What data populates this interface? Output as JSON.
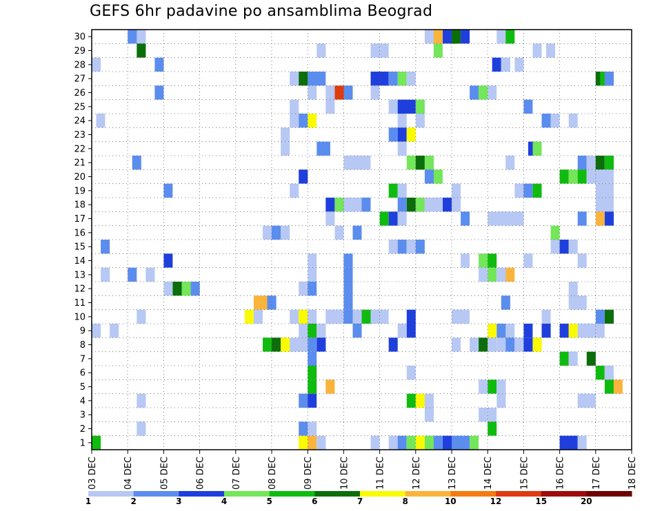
{
  "chart_data": {
    "type": "heatmap",
    "title": "GEFS 6hr padavine po ansamblima Beograd",
    "x_tick_labels": [
      "03 DEC",
      "04 DEC",
      "05 DEC",
      "06 DEC",
      "07 DEC",
      "08 DEC",
      "09 DEC",
      "10 DEC",
      "11 DEC",
      "12 DEC",
      "13 DEC",
      "14 DEC",
      "15 DEC",
      "16 DEC",
      "17 DEC",
      "18 DEC"
    ],
    "steps_per_day": 4,
    "x_steps": 60,
    "y_tick_labels": [
      "1",
      "2",
      "3",
      "4",
      "5",
      "6",
      "7",
      "8",
      "9",
      "10",
      "11",
      "12",
      "13",
      "14",
      "15",
      "16",
      "17",
      "18",
      "19",
      "20",
      "21",
      "22",
      "23",
      "24",
      "25",
      "26",
      "27",
      "28",
      "29",
      "30"
    ],
    "grid": true,
    "legend": {
      "position": "bottom",
      "colors": [
        "#b7c8f4",
        "#5b8def",
        "#1f3fdd",
        "#73e65a",
        "#10bb10",
        "#0b6e0b",
        "#fafa00",
        "#fab43c",
        "#f57a12",
        "#e03a10",
        "#a00a0a",
        "#6e0000"
      ],
      "labels": [
        "1",
        "2",
        "3",
        "4",
        "5",
        "6",
        "7",
        "8",
        "10",
        "12",
        "15",
        "20"
      ]
    },
    "cells": [
      [
        30,
        "24-24.75",
        2
      ],
      [
        30,
        "25",
        "1"
      ],
      [
        30,
        "57",
        "1"
      ],
      [
        30,
        "58",
        "8"
      ],
      [
        30,
        "59-59.5",
        3
      ],
      [
        30,
        "60",
        6
      ],
      [
        30,
        "61",
        "3"
      ],
      [
        30,
        "65-65.5",
        "1"
      ],
      [
        30,
        "66",
        "5"
      ],
      [
        29,
        "25",
        "6"
      ],
      [
        29,
        "45",
        "9"
      ],
      [
        29,
        "51-52",
        "1"
      ],
      [
        29,
        "58",
        "4"
      ],
      [
        29,
        "69",
        "11"
      ],
      [
        29,
        "70.5",
        "1"
      ],
      [
        28,
        "20",
        "1"
      ],
      [
        28,
        "27",
        "2"
      ],
      [
        28,
        "64.5",
        "3"
      ],
      [
        28,
        "65.5",
        "1"
      ],
      [
        28,
        "67",
        "1"
      ],
      [
        27,
        "42",
        "1"
      ],
      [
        27,
        "43",
        "6"
      ],
      [
        27,
        "44-45",
        "2"
      ],
      [
        27,
        "51-52",
        "3"
      ],
      [
        27,
        "53",
        "2"
      ],
      [
        27,
        "54",
        "4"
      ],
      [
        27,
        "55",
        "9"
      ],
      [
        27,
        "76",
        "6"
      ],
      [
        27,
        "76.5",
        "5"
      ],
      [
        27,
        "77",
        "2"
      ],
      [
        26,
        "27",
        "2"
      ],
      [
        26,
        "44",
        "1"
      ],
      [
        26,
        "46",
        "11"
      ],
      [
        26,
        "47",
        "12"
      ],
      [
        26,
        "48",
        "2"
      ],
      [
        26,
        "51",
        "1"
      ],
      [
        26,
        "62",
        "2"
      ],
      [
        26,
        "63",
        "4"
      ],
      [
        26,
        "64",
        "1"
      ],
      [
        25,
        "9.5",
        "2"
      ],
      [
        25,
        "42",
        "1"
      ],
      [
        25,
        "46",
        "1"
      ],
      [
        25,
        "53",
        "1"
      ],
      [
        25,
        "54-55",
        "3"
      ],
      [
        25,
        "56",
        "4"
      ],
      [
        25,
        "68",
        "2"
      ],
      [
        24,
        "20.5",
        "1"
      ],
      [
        24,
        "42",
        "1"
      ],
      [
        24,
        "43",
        "2"
      ],
      [
        24,
        "44",
        "7"
      ],
      [
        24,
        "54",
        "1"
      ],
      [
        24,
        "56",
        "1"
      ],
      [
        24,
        "70",
        "2"
      ],
      [
        24,
        "71",
        "1"
      ],
      [
        24,
        "73",
        "1"
      ],
      [
        23,
        "41",
        "1"
      ],
      [
        23,
        "53",
        "2"
      ],
      [
        23,
        "54",
        "3"
      ],
      [
        23,
        "55",
        "7"
      ],
      [
        22,
        "41",
        "1"
      ],
      [
        22,
        "45-45.5",
        "2"
      ],
      [
        22,
        "54",
        "1"
      ],
      [
        22,
        "68.5",
        "3"
      ],
      [
        22,
        "69",
        "4"
      ],
      [
        21,
        "24.5",
        "2"
      ],
      [
        21,
        "48-50",
        "1"
      ],
      [
        21,
        "55",
        "4"
      ],
      [
        21,
        "56",
        "6"
      ],
      [
        21,
        "57",
        "4"
      ],
      [
        21,
        "66",
        "1"
      ],
      [
        21,
        "74",
        "2"
      ],
      [
        21,
        "75",
        "1"
      ],
      [
        21,
        "76",
        "6"
      ],
      [
        21,
        "77",
        "5"
      ],
      [
        20,
        "43",
        "3"
      ],
      [
        20,
        "57",
        "2"
      ],
      [
        20,
        "58",
        "4"
      ],
      [
        20,
        "72",
        "5"
      ],
      [
        20,
        "73",
        "4"
      ],
      [
        20,
        "74",
        "5"
      ],
      [
        20,
        "75-77",
        "1"
      ],
      [
        19,
        "28",
        "2"
      ],
      [
        19,
        "42",
        "1"
      ],
      [
        19,
        "53",
        "5"
      ],
      [
        19,
        "54",
        "1"
      ],
      [
        19,
        "60",
        "1"
      ],
      [
        19,
        "67",
        "1"
      ],
      [
        19,
        "68",
        "2"
      ],
      [
        19,
        "69",
        "5"
      ],
      [
        19,
        "76-77",
        "1"
      ],
      [
        18,
        "46",
        "3"
      ],
      [
        18,
        "47",
        "4"
      ],
      [
        18,
        "48-49",
        "1"
      ],
      [
        18,
        "50",
        "2"
      ],
      [
        18,
        "54",
        "2"
      ],
      [
        18,
        "55",
        "6"
      ],
      [
        18,
        "56",
        "4"
      ],
      [
        18,
        "57",
        "1"
      ],
      [
        18,
        "58",
        "1"
      ],
      [
        18,
        "59",
        "3"
      ],
      [
        18,
        "60",
        "1"
      ],
      [
        18,
        "76-77",
        "1"
      ],
      [
        17,
        "13",
        "3"
      ],
      [
        17,
        "14",
        "1"
      ],
      [
        17,
        "46",
        "1"
      ],
      [
        17,
        "52",
        "5"
      ],
      [
        17,
        "53",
        "3"
      ],
      [
        17,
        "54",
        "11"
      ],
      [
        17,
        "61",
        "2"
      ],
      [
        17,
        "64-67",
        "1"
      ],
      [
        17,
        "74",
        "2"
      ],
      [
        17,
        "76",
        "8"
      ],
      [
        17,
        "77",
        "3"
      ],
      [
        16,
        "14",
        "1"
      ],
      [
        16,
        "39",
        "1"
      ],
      [
        16,
        "40",
        "2"
      ],
      [
        16,
        "41",
        "1"
      ],
      [
        16,
        "47",
        "1"
      ],
      [
        16,
        "49",
        "2"
      ],
      [
        16,
        "71",
        "4"
      ],
      [
        15,
        "21",
        "2"
      ],
      [
        15,
        "53",
        "1"
      ],
      [
        15,
        "54",
        "2"
      ],
      [
        15,
        "55",
        "1"
      ],
      [
        15,
        "56",
        "2"
      ],
      [
        15,
        "71",
        "1"
      ],
      [
        15,
        "72",
        "3"
      ],
      [
        15,
        "73",
        "1"
      ],
      [
        14,
        "28",
        "3"
      ],
      [
        14,
        "44",
        "1"
      ],
      [
        14,
        "48",
        "2"
      ],
      [
        14,
        "61",
        "1"
      ],
      [
        14,
        "63",
        "4"
      ],
      [
        14,
        "64",
        "5"
      ],
      [
        14,
        "68",
        "1"
      ],
      [
        14,
        "74",
        "1"
      ],
      [
        13,
        "21",
        "1"
      ],
      [
        13,
        "24",
        "2"
      ],
      [
        13,
        "26",
        "1"
      ],
      [
        13,
        "44",
        "1"
      ],
      [
        13,
        "48",
        "2"
      ],
      [
        13,
        "63",
        "1"
      ],
      [
        13,
        "64",
        "4"
      ],
      [
        13,
        "65",
        "1"
      ],
      [
        13,
        "66",
        "8"
      ],
      [
        12,
        "28",
        "1"
      ],
      [
        12,
        "29",
        "6"
      ],
      [
        12,
        "30",
        "4"
      ],
      [
        12,
        "31",
        "2"
      ],
      [
        12,
        "43",
        "1"
      ],
      [
        12,
        "44",
        "2"
      ],
      [
        12,
        "48",
        "2"
      ],
      [
        12,
        "73",
        "1"
      ],
      [
        11,
        "38-39",
        "8"
      ],
      [
        11,
        "39.5",
        "2"
      ],
      [
        11,
        "48",
        "2"
      ],
      [
        11,
        "65.5",
        "2"
      ],
      [
        11,
        "73-74",
        "1"
      ],
      [
        10,
        "25",
        "1"
      ],
      [
        10,
        "37",
        "7"
      ],
      [
        10,
        "38",
        "1"
      ],
      [
        10,
        "42",
        "1"
      ],
      [
        10,
        "43",
        "7"
      ],
      [
        10,
        "44",
        "1"
      ],
      [
        10,
        "46-47",
        "1"
      ],
      [
        10,
        "48",
        "2"
      ],
      [
        10,
        "49",
        "1"
      ],
      [
        10,
        "50",
        "5"
      ],
      [
        10,
        "51-52",
        "1"
      ],
      [
        10,
        "55",
        "3"
      ],
      [
        10,
        "60-61",
        "1"
      ],
      [
        10,
        "70",
        "1"
      ],
      [
        10,
        "76",
        "2"
      ],
      [
        10,
        "77",
        "6"
      ],
      [
        9,
        "20",
        "1"
      ],
      [
        9,
        "22",
        "1"
      ],
      [
        9,
        "43",
        "1"
      ],
      [
        9,
        "44",
        "5"
      ],
      [
        9,
        "45",
        "1"
      ],
      [
        9,
        "49",
        "2"
      ],
      [
        9,
        "54",
        "1"
      ],
      [
        9,
        "55",
        "3"
      ],
      [
        9,
        "64",
        "7"
      ],
      [
        9,
        "65",
        "2"
      ],
      [
        9,
        "66",
        "1"
      ],
      [
        9,
        "68",
        "3"
      ],
      [
        9,
        "70",
        "3"
      ],
      [
        9,
        "72",
        "3"
      ],
      [
        9,
        "73",
        "7"
      ],
      [
        9,
        "74-76",
        "1"
      ],
      [
        8,
        "39",
        "5"
      ],
      [
        8,
        "40",
        "6"
      ],
      [
        8,
        "41",
        "7"
      ],
      [
        8,
        "42-43",
        "1"
      ],
      [
        8,
        "44",
        "2"
      ],
      [
        8,
        "45",
        "3"
      ],
      [
        8,
        "53",
        "3"
      ],
      [
        8,
        "60",
        "1"
      ],
      [
        8,
        "62",
        "1"
      ],
      [
        8,
        "63",
        "6"
      ],
      [
        8,
        "64",
        "9"
      ],
      [
        8,
        "65",
        "1"
      ],
      [
        8,
        "66",
        "2"
      ],
      [
        8,
        "67",
        "1"
      ],
      [
        8,
        "68",
        "3"
      ],
      [
        8,
        "69",
        "7"
      ],
      [
        7,
        "44",
        "2"
      ],
      [
        7,
        "72",
        "5"
      ],
      [
        7,
        "73",
        "11"
      ],
      [
        7,
        "75",
        "6"
      ],
      [
        6,
        "44",
        "5"
      ],
      [
        6,
        "55",
        "1"
      ],
      [
        6,
        "76",
        "5"
      ],
      [
        6,
        "77",
        "9"
      ],
      [
        5,
        "10",
        "3"
      ],
      [
        5,
        "13",
        "2"
      ],
      [
        5,
        "44",
        "5"
      ],
      [
        5,
        "46",
        "8"
      ],
      [
        5,
        "63",
        "1"
      ],
      [
        5,
        "64",
        "5"
      ],
      [
        5,
        "65",
        "1"
      ],
      [
        5,
        "77",
        "5"
      ],
      [
        5,
        "78",
        "8"
      ],
      [
        4,
        "10",
        "1"
      ],
      [
        4,
        "16",
        "1"
      ],
      [
        4,
        "17",
        "7"
      ],
      [
        4,
        "25",
        "1"
      ],
      [
        4,
        "43",
        "2"
      ],
      [
        4,
        "44",
        "3"
      ],
      [
        4,
        "55",
        "5"
      ],
      [
        4,
        "56",
        "7"
      ],
      [
        4,
        "57",
        "1"
      ],
      [
        4,
        "65",
        "1"
      ],
      [
        4,
        "74-75",
        "1"
      ],
      [
        3,
        "57",
        "1"
      ],
      [
        3,
        "63",
        "1"
      ],
      [
        3,
        "64",
        "1"
      ],
      [
        2,
        "25",
        "1"
      ],
      [
        2,
        "43",
        "2"
      ],
      [
        2,
        "44",
        "1"
      ],
      [
        2,
        "64",
        "5"
      ],
      [
        1,
        "20",
        "5"
      ],
      [
        1,
        "43",
        "7"
      ],
      [
        1,
        "44",
        "8"
      ],
      [
        1,
        "45",
        "1"
      ],
      [
        1,
        "51",
        "1"
      ],
      [
        1,
        "53",
        "1"
      ],
      [
        1,
        "54",
        "2"
      ],
      [
        1,
        "55",
        "4"
      ],
      [
        1,
        "56",
        "7"
      ],
      [
        1,
        "57",
        "4"
      ],
      [
        1,
        "58",
        "2"
      ],
      [
        1,
        "59",
        "3"
      ],
      [
        1,
        "60-61",
        "2"
      ],
      [
        1,
        "62",
        "4"
      ],
      [
        1,
        "72-73",
        "3"
      ],
      [
        1,
        "74",
        "1"
      ]
    ]
  }
}
